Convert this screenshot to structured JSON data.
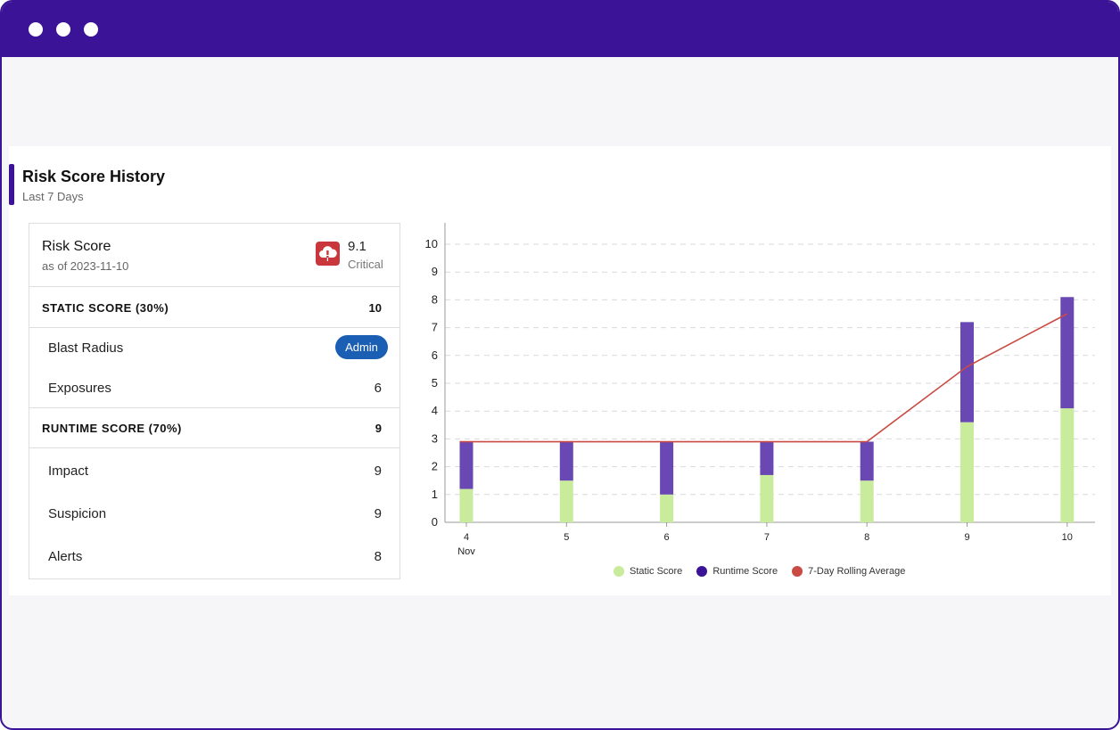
{
  "window": {
    "dots": [
      "window-dot-1",
      "window-dot-2",
      "window-dot-3"
    ]
  },
  "card": {
    "title": "Risk Score History",
    "subtitle": "Last 7 Days"
  },
  "panel": {
    "risk_score": {
      "title": "Risk Score",
      "date": "as of 2023-11-10",
      "value": "9.1",
      "label": "Critical",
      "icon": "cloud-alert-icon",
      "badge_color": "#c9363c"
    },
    "static": {
      "label": "STATIC SCORE (30%)",
      "value": "10",
      "items": [
        {
          "label": "Blast Radius",
          "value": "Admin"
        },
        {
          "label": "Exposures",
          "value": "6"
        }
      ]
    },
    "runtime": {
      "label": "RUNTIME SCORE (70%)",
      "value": "9",
      "items": [
        {
          "label": "Impact",
          "value": "9"
        },
        {
          "label": "Suspicion",
          "value": "9"
        },
        {
          "label": "Alerts",
          "value": "8"
        }
      ]
    }
  },
  "chart_data": {
    "type": "bar",
    "stacked": true,
    "categories": [
      "4",
      "5",
      "6",
      "7",
      "8",
      "9",
      "10"
    ],
    "month_label": "Nov",
    "ylim": [
      0,
      10
    ],
    "yticks": [
      0,
      1,
      2,
      3,
      4,
      5,
      6,
      7,
      8,
      9,
      10
    ],
    "grid": true,
    "legend_position": "bottom-center",
    "series": [
      {
        "name": "Static Score",
        "kind": "bar",
        "color": "#c9eb9c",
        "values": [
          1.2,
          1.5,
          1.0,
          1.7,
          1.5,
          3.6,
          4.1
        ]
      },
      {
        "name": "Runtime Score",
        "kind": "bar",
        "color": "#6a48b4",
        "values": [
          1.7,
          1.4,
          1.9,
          1.2,
          1.4,
          3.6,
          4.0
        ]
      },
      {
        "name": "7-Day Rolling Average",
        "kind": "line",
        "color": "#c94b44",
        "values": [
          2.9,
          2.9,
          2.9,
          2.9,
          2.9,
          5.6,
          7.5
        ]
      }
    ],
    "legend_colors": [
      "#c9eb9c",
      "#3b1396",
      "#c94b44"
    ]
  }
}
